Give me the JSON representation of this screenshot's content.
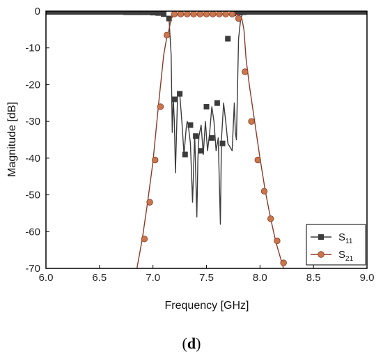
{
  "chart_data": {
    "type": "line",
    "xlabel": "Frequency [GHz]",
    "ylabel": "Magnitude [dB]",
    "xlim": [
      6.0,
      9.0
    ],
    "ylim": [
      -70,
      0
    ],
    "xticks": [
      "6.0",
      "6.5",
      "7.0",
      "7.5",
      "8.0",
      "8.5",
      "9.0"
    ],
    "yticks": [
      "0",
      "-10",
      "-20",
      "-30",
      "-40",
      "-50",
      "-60",
      "-70"
    ],
    "grid": false,
    "legend_position": "bottom-right",
    "series": [
      {
        "name": "S11",
        "legend_main": "S",
        "legend_sub": "11",
        "color": "#3c3c3c",
        "marker": "square",
        "x": [
          6.0,
          6.05,
          6.1,
          6.2,
          6.3,
          6.4,
          6.5,
          6.6,
          6.7,
          6.8,
          6.9,
          7.0,
          7.05,
          7.1,
          7.13,
          7.15,
          7.17,
          7.18,
          7.19,
          7.2,
          7.21,
          7.23,
          7.25,
          7.27,
          7.29,
          7.31,
          7.32,
          7.33,
          7.35,
          7.37,
          7.39,
          7.41,
          7.42,
          7.43,
          7.45,
          7.47,
          7.49,
          7.51,
          7.53,
          7.55,
          7.57,
          7.59,
          7.61,
          7.63,
          7.64,
          7.66,
          7.68,
          7.7,
          7.72,
          7.74,
          7.76,
          7.77,
          7.78,
          7.8,
          7.82,
          7.84,
          7.86,
          7.9,
          8.0,
          8.1,
          8.2,
          8.3,
          8.4,
          8.5,
          8.6,
          8.7,
          8.8,
          8.9,
          9.0
        ],
        "y": [
          -0.2,
          -0.2,
          -0.2,
          -0.2,
          -0.2,
          -0.2,
          -0.2,
          -0.2,
          -0.2,
          -0.3,
          -0.3,
          -0.4,
          -0.5,
          -0.8,
          -1.5,
          -2.0,
          -12,
          -33,
          -24,
          -30,
          -44,
          -23,
          -22.5,
          -30,
          -39,
          -32,
          -30,
          -31,
          -36,
          -52,
          -33.5,
          -56,
          -40,
          -34,
          -31,
          -39,
          -30,
          -38,
          -33,
          -26,
          -30,
          -38,
          -34.5,
          -58,
          -35,
          -25,
          -30,
          -36,
          -37,
          -38,
          -25,
          -33,
          -35,
          -7.5,
          -2.0,
          -0.6,
          -0.4,
          -0.3,
          -0.2,
          -0.2,
          -0.2,
          -0.2,
          -0.2,
          -0.2,
          -0.2,
          -0.2,
          -0.2,
          -0.2,
          -0.2
        ],
        "marker_x": [
          6.0,
          6.05,
          6.1,
          6.15,
          6.2,
          6.25,
          6.3,
          6.35,
          6.4,
          6.45,
          6.5,
          6.55,
          6.6,
          6.65,
          6.7,
          6.75,
          6.8,
          6.85,
          6.9,
          6.95,
          7.0,
          7.05,
          7.1,
          7.15,
          7.2,
          7.25,
          7.3,
          7.35,
          7.4,
          7.45,
          7.5,
          7.55,
          7.6,
          7.65,
          7.7,
          7.75,
          7.8,
          7.85,
          7.9,
          7.95,
          8.0,
          8.05,
          8.1,
          8.15,
          8.2,
          8.25,
          8.3,
          8.35,
          8.4,
          8.45,
          8.5,
          8.55,
          8.6,
          8.65,
          8.7,
          8.75,
          8.8,
          8.85,
          8.9,
          8.95,
          9.0
        ],
        "marker_y": [
          -0.2,
          -0.2,
          -0.2,
          -0.2,
          -0.2,
          -0.2,
          -0.2,
          -0.2,
          -0.2,
          -0.2,
          -0.2,
          -0.2,
          -0.2,
          -0.2,
          -0.2,
          -0.3,
          -0.3,
          -0.3,
          -0.3,
          -0.3,
          -0.4,
          -0.5,
          -0.8,
          -2.0,
          -24,
          -22.5,
          -39,
          -31,
          -34,
          -38,
          -26,
          -34.5,
          -25,
          -36,
          -7.5,
          -0.6,
          -0.4,
          -0.3,
          -0.2,
          -0.2,
          -0.2,
          -0.2,
          -0.2,
          -0.2,
          -0.2,
          -0.2,
          -0.2,
          -0.2,
          -0.2,
          -0.2,
          -0.2,
          -0.2,
          -0.2,
          -0.2,
          -0.2,
          -0.2,
          -0.2,
          -0.2,
          -0.2,
          -0.2,
          -0.2
        ]
      },
      {
        "name": "S21",
        "legend_main": "S",
        "legend_sub": "21",
        "color": "#8b3a2a",
        "marker_color": "#c9774a",
        "marker": "circle",
        "x": [
          6.85,
          6.9,
          6.95,
          7.0,
          7.05,
          7.1,
          7.13,
          7.15,
          7.17,
          7.2,
          7.3,
          7.4,
          7.5,
          7.6,
          7.7,
          7.8,
          7.83,
          7.85,
          7.87,
          7.9,
          7.95,
          8.0,
          8.05,
          8.1,
          8.15,
          8.2,
          8.22
        ],
        "y": [
          -70,
          -62,
          -52,
          -41,
          -26,
          -12,
          -7,
          -5,
          -2,
          -0.9,
          -0.8,
          -0.8,
          -0.8,
          -0.8,
          -0.8,
          -0.9,
          -2,
          -5,
          -13,
          -20,
          -30,
          -40,
          -49,
          -56.5,
          -63,
          -68,
          -70
        ],
        "marker_x": [
          6.92,
          6.97,
          7.02,
          7.07,
          7.13,
          7.2,
          7.26,
          7.32,
          7.38,
          7.44,
          7.5,
          7.56,
          7.62,
          7.68,
          7.74,
          7.8,
          7.86,
          7.92,
          7.98,
          8.04,
          8.1,
          8.16,
          8.22
        ],
        "marker_y": [
          -62,
          -52,
          -40.5,
          -26,
          -6.5,
          -0.8,
          -0.8,
          -0.8,
          -0.8,
          -0.8,
          -0.8,
          -0.8,
          -0.8,
          -0.8,
          -0.8,
          -2,
          -16.5,
          -30,
          -40.5,
          -49,
          -56.5,
          -62.5,
          -68.5
        ]
      }
    ]
  },
  "caption": {
    "letter": "d",
    "open": "(",
    "close": ")"
  }
}
